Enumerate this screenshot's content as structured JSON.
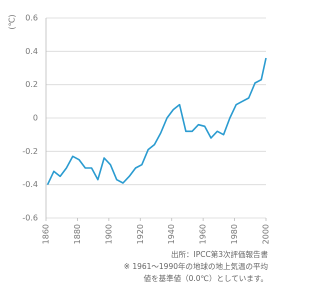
{
  "chart_data": {
    "type": "line",
    "y_label": "(℃)",
    "x": [
      1861,
      1865,
      1869,
      1873,
      1877,
      1881,
      1885,
      1889,
      1893,
      1897,
      1901,
      1905,
      1909,
      1913,
      1917,
      1921,
      1925,
      1929,
      1933,
      1937,
      1941,
      1945,
      1949,
      1953,
      1957,
      1961,
      1965,
      1969,
      1973,
      1977,
      1981,
      1985,
      1989,
      1993,
      1997,
      2000
    ],
    "series": [
      {
        "name": null,
        "color": "#2a9bd0",
        "values": [
          -0.4,
          -0.32,
          -0.35,
          -0.3,
          -0.23,
          -0.25,
          -0.3,
          -0.3,
          -0.37,
          -0.24,
          -0.28,
          -0.37,
          -0.39,
          -0.35,
          -0.3,
          -0.28,
          -0.19,
          -0.16,
          -0.09,
          0.0,
          0.05,
          0.08,
          -0.08,
          -0.08,
          -0.04,
          -0.05,
          -0.12,
          -0.08,
          -0.1,
          0.0,
          0.08,
          0.1,
          0.12,
          0.21,
          0.23,
          0.36
        ]
      }
    ],
    "xlim": [
      1860,
      2000
    ],
    "xticks": [
      1860,
      1880,
      1900,
      1920,
      1940,
      1960,
      1980,
      2000
    ],
    "ylim": [
      -0.6,
      0.6
    ],
    "yticks": [
      {
        "value": -0.6,
        "label": "-0.6"
      },
      {
        "value": -0.4,
        "label": "-0.4"
      },
      {
        "value": -0.2,
        "label": "-0.2"
      },
      0,
      {
        "value": 0.2,
        "label": "0.2"
      },
      {
        "value": 0.4,
        "label": "0.4"
      },
      {
        "value": 0.6,
        "label": "0.6"
      }
    ],
    "grid": true,
    "notes": [
      "出所：IPCC第3次評価報告書",
      "※ 1961〜1990年の地球の地上気温の平均",
      "値を基準値（0.0℃）としています。"
    ]
  }
}
